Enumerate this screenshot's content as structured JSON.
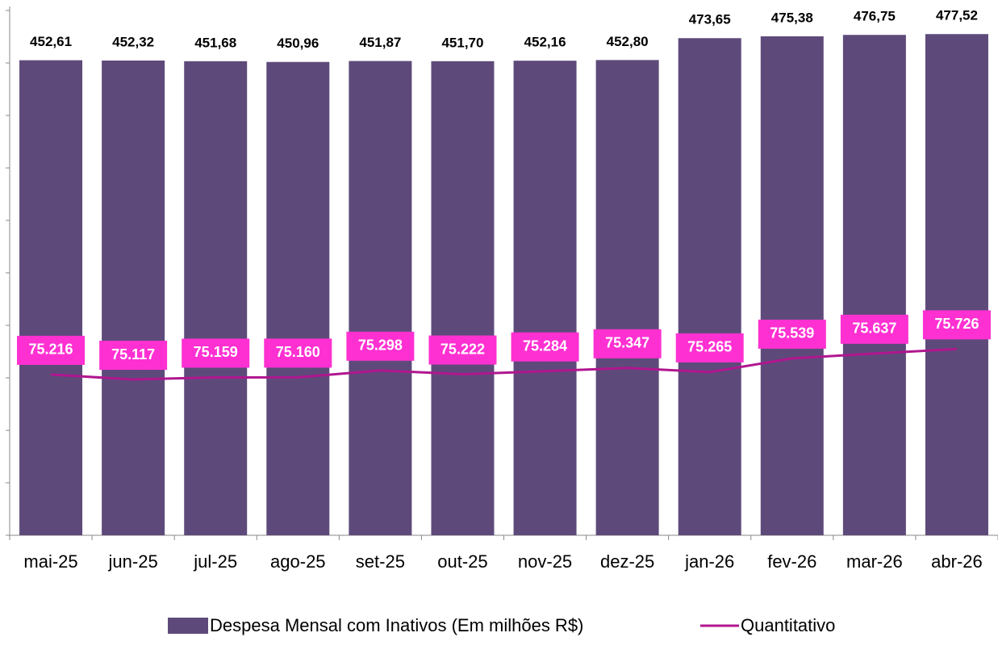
{
  "chart_data": {
    "type": "bar",
    "categories": [
      "mai-25",
      "jun-25",
      "jul-25",
      "ago-25",
      "set-25",
      "out-25",
      "nov-25",
      "dez-25",
      "jan-26",
      "fev-26",
      "mar-26",
      "abr-26"
    ],
    "series": [
      {
        "name": "Despesa Mensal com Inativos (Em milhões R$)",
        "type": "bar",
        "color": "#5e4a7a",
        "values": [
          452.61,
          452.32,
          451.68,
          450.96,
          451.87,
          451.7,
          452.16,
          452.8,
          473.65,
          475.38,
          476.75,
          477.52
        ],
        "value_labels": [
          "452,61",
          "452,32",
          "451,68",
          "450,96",
          "451,87",
          "451,70",
          "452,16",
          "452,80",
          "473,65",
          "475,38",
          "476,75",
          "477,52"
        ]
      },
      {
        "name": "Quantitativo",
        "type": "line",
        "axis": "y2",
        "color": "#b0168f",
        "label_color": "#ff30d2",
        "values": [
          75216,
          75117,
          75159,
          75160,
          75298,
          75222,
          75284,
          75347,
          75265,
          75539,
          75637,
          75726
        ],
        "value_labels": [
          "75.216",
          "75.117",
          "75.159",
          "75.160",
          "75.298",
          "75.222",
          "75.284",
          "75.347",
          "75.265",
          "75.539",
          "75.637",
          "75.726"
        ]
      }
    ],
    "ylim": [
      0,
      500
    ],
    "yticks": [
      0,
      50,
      100,
      150,
      200,
      250,
      300,
      350,
      400,
      450,
      500
    ],
    "y2lim": [
      72000,
      82500
    ],
    "legend": "bottom"
  }
}
